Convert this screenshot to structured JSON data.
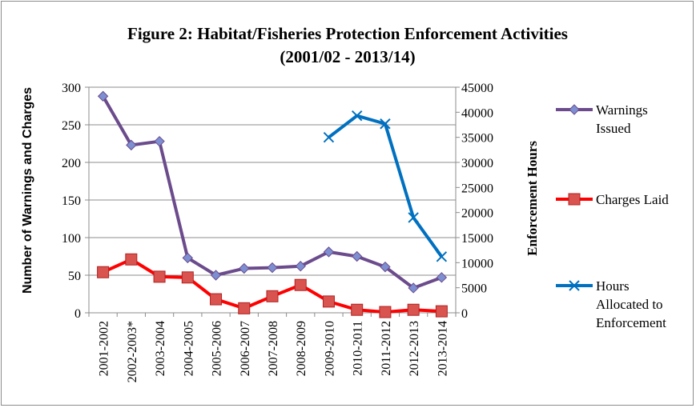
{
  "chart_data": {
    "type": "line",
    "title_line1": "Figure 2: Habitat/Fisheries Protection Enforcement Activities",
    "title_line2": "(2001/02 - 2013/14)",
    "ylabel_left": "Number of Warnings and Charges",
    "ylabel_right": "Enforcement Hours",
    "ylim_left": [
      0,
      300
    ],
    "yticks_left": [
      0,
      50,
      100,
      150,
      200,
      250,
      300
    ],
    "ylim_right": [
      0,
      45000
    ],
    "yticks_right": [
      0,
      5000,
      10000,
      15000,
      20000,
      25000,
      30000,
      35000,
      40000,
      45000
    ],
    "grid": true,
    "legend_position": "right",
    "categories": [
      "2001-2002",
      "2002-2003*",
      "2003-2004",
      "2004-2005",
      "2005-2006",
      "2006-2007",
      "2007-2008",
      "2008-2009",
      "2009-2010",
      "2010-2011",
      "2011-2012",
      "2012-2013",
      "2013-2014"
    ],
    "series": [
      {
        "name_lines": [
          "Warnings",
          "Issued"
        ],
        "axis": "left",
        "color": "#6b4b8c",
        "marker_fill": "#7d8fd1",
        "marker": "diamond",
        "values": [
          288,
          223,
          228,
          73,
          50,
          59,
          60,
          62,
          81,
          75,
          61,
          33,
          47
        ]
      },
      {
        "name_lines": [
          "Charges Laid"
        ],
        "axis": "left",
        "color": "#ff0000",
        "marker_fill": "#d9534f",
        "marker": "square",
        "values": [
          54,
          71,
          48,
          47,
          18,
          6,
          22,
          37,
          15,
          4,
          1,
          4,
          2
        ]
      },
      {
        "name_lines": [
          "Hours",
          "Allocated to",
          "Enforcement"
        ],
        "axis": "right",
        "color": "#0070c0",
        "marker_fill": "#0070c0",
        "marker": "x",
        "values": [
          null,
          null,
          null,
          null,
          null,
          null,
          null,
          null,
          35000,
          39300,
          37700,
          19000,
          11200
        ]
      }
    ]
  }
}
